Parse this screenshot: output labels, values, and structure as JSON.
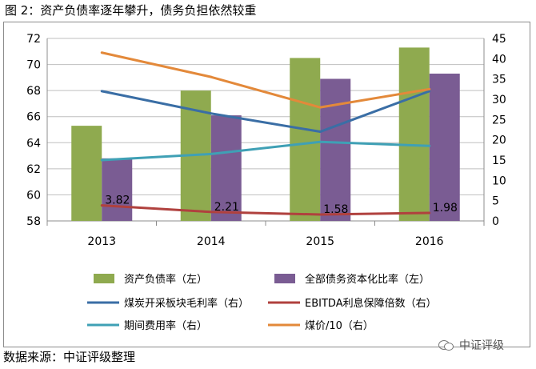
{
  "figure": {
    "title": "图 2：资产负债率逐年攀升，债务负担依然较重",
    "source": "数据来源：中证评级整理",
    "watermark": "中证评级"
  },
  "chart_data": {
    "type": "bar",
    "categories": [
      "2013",
      "2014",
      "2015",
      "2016"
    ],
    "left_axis": {
      "min": 58,
      "max": 72,
      "step": 2,
      "ticks": [
        "58",
        "60",
        "62",
        "64",
        "66",
        "68",
        "70",
        "72"
      ]
    },
    "right_axis": {
      "min": 0,
      "max": 45,
      "step": 5,
      "ticks": [
        "0",
        "5",
        "10",
        "15",
        "20",
        "25",
        "30",
        "35",
        "40",
        "45"
      ]
    },
    "grid": true,
    "legend_position": "bottom",
    "series": [
      {
        "name": "资产负债率（左）",
        "type": "bar",
        "axis": "left",
        "color": "#8faa4f",
        "values": [
          65.3,
          68.0,
          70.5,
          71.3
        ]
      },
      {
        "name": "全部债务资本化比率（左）",
        "type": "bar",
        "axis": "left",
        "color": "#7a5c93",
        "values": [
          62.8,
          66.1,
          68.9,
          69.3
        ]
      },
      {
        "name": "煤炭开采板块毛利率（右）",
        "type": "line",
        "axis": "right",
        "color": "#3a6ea5",
        "values": [
          32.0,
          26.5,
          22.0,
          32.0
        ]
      },
      {
        "name": "EBITDA利息保障倍数（右）",
        "type": "line",
        "axis": "right",
        "color": "#b0413e",
        "values": [
          3.82,
          2.21,
          1.58,
          1.98
        ],
        "labels": [
          "3.82",
          "2.21",
          "1.58",
          "1.98"
        ]
      },
      {
        "name": "期间费用率（右）",
        "type": "line",
        "axis": "right",
        "color": "#3fa0b5",
        "values": [
          15.0,
          16.5,
          19.5,
          18.5
        ]
      },
      {
        "name": "煤价/10（右）",
        "type": "line",
        "axis": "right",
        "color": "#e3893a",
        "values": [
          41.5,
          35.5,
          28.0,
          32.5
        ]
      }
    ]
  }
}
